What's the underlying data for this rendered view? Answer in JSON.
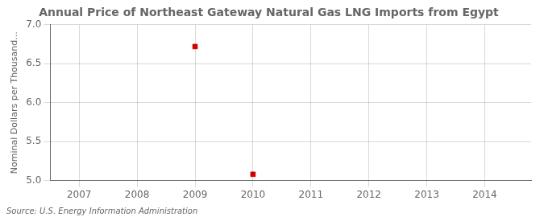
{
  "chart_data": {
    "type": "scatter",
    "title": "Annual Price of Northeast Gateway Natural Gas LNG Imports from Egypt",
    "ylabel": "Nominal Dollars per Thousand...",
    "annotations": [
      "Source: U.S. Energy Information Administration"
    ],
    "x": [
      2009,
      2010
    ],
    "values": [
      6.72,
      5.08
    ],
    "color": "#cc0000",
    "marker": "square",
    "xlim": [
      2006.5,
      2014.8
    ],
    "ylim": [
      5.0,
      7.0
    ],
    "xticks": [
      2007,
      2008,
      2009,
      2010,
      2011,
      2012,
      2013,
      2014
    ],
    "yticks": [
      {
        "value": 5.0,
        "label": "5.0"
      },
      5.5,
      {
        "value": 6.0,
        "label": "6.0"
      },
      6.5,
      {
        "value": 7.0,
        "label": "7.0"
      }
    ],
    "grid": true
  }
}
